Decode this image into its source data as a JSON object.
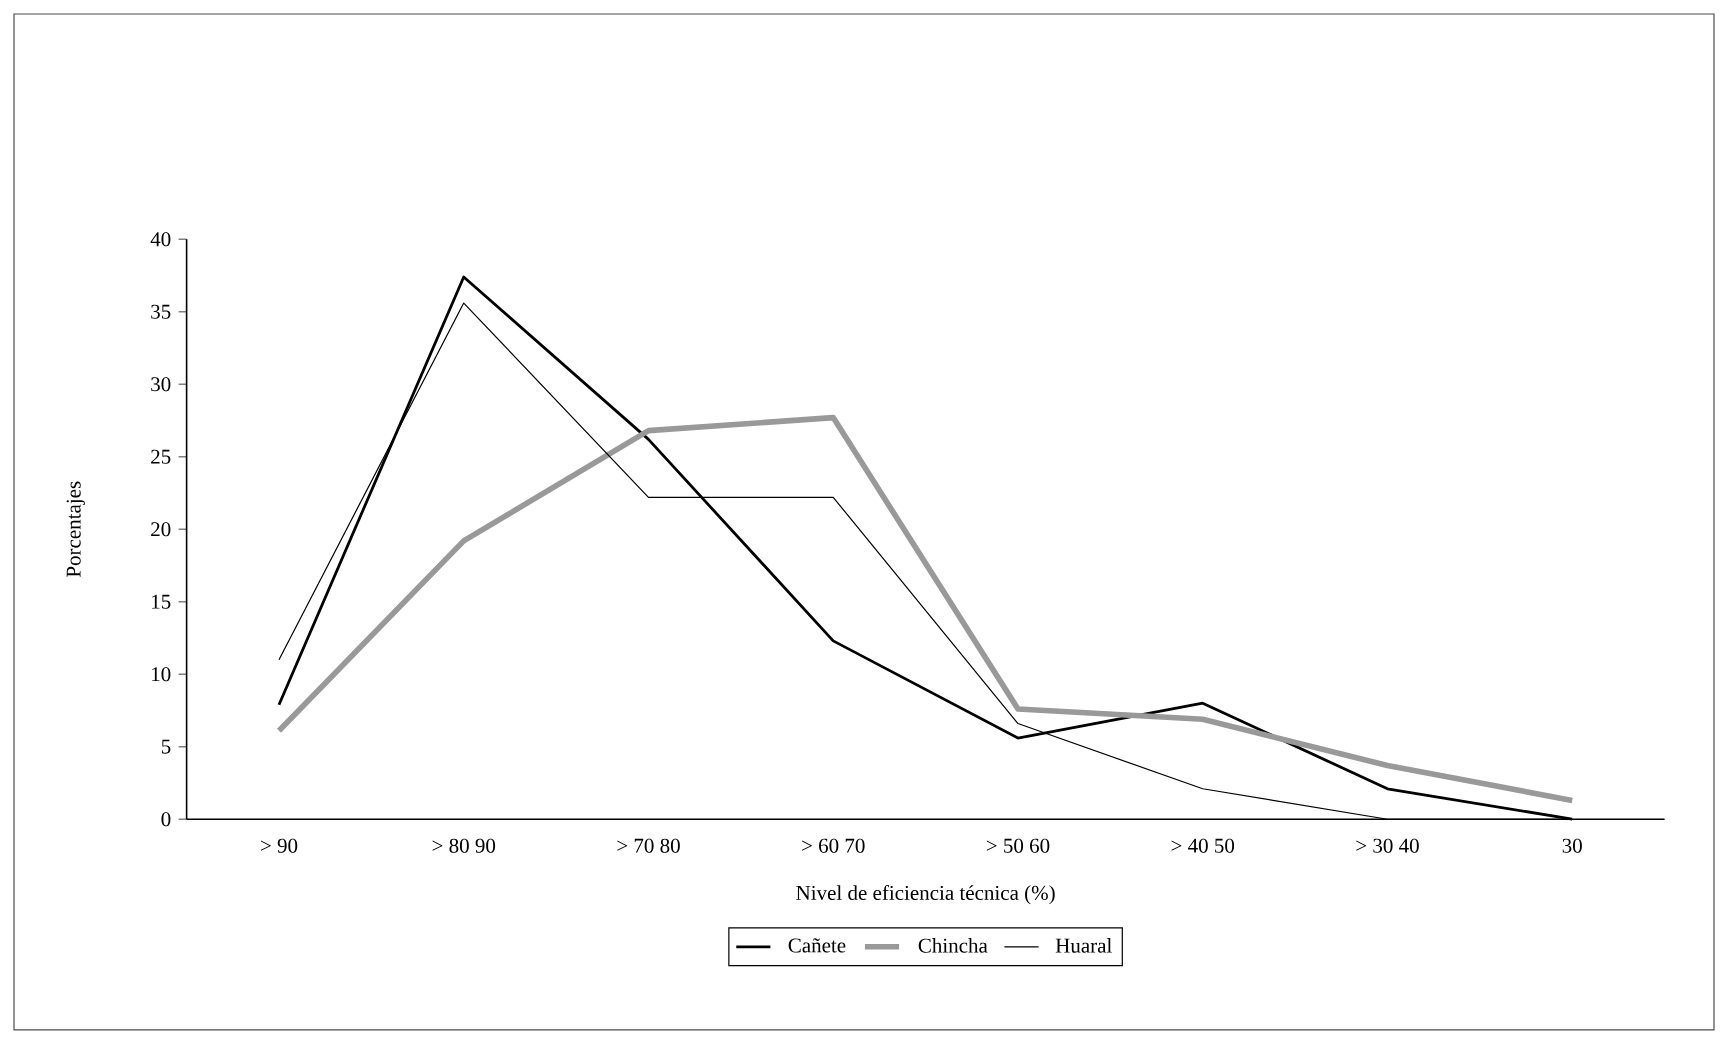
{
  "chart_data": {
    "type": "line",
    "xlabel": "Nivel de eficiencia técnica (%)",
    "ylabel": "Porcentajes",
    "categories": [
      "> 90",
      "> 80   90",
      "> 70      80",
      "> 60   70",
      "> 50   60",
      "> 40   50",
      "> 30   40",
      "30"
    ],
    "series": [
      {
        "name": "Cañete",
        "color": "#000000",
        "values": [
          7.9,
          37.4,
          26.2,
          12.3,
          5.6,
          8.0,
          2.1,
          0
        ]
      },
      {
        "name": "Chincha",
        "color": "#999999",
        "values": [
          6.1,
          19.2,
          26.8,
          27.7,
          7.6,
          6.9,
          3.7,
          1.3
        ]
      },
      {
        "name": "Huaral",
        "color": "#000000",
        "values": [
          11.0,
          35.6,
          22.2,
          22.2,
          6.6,
          2.1,
          0,
          0
        ]
      }
    ],
    "ylim": [
      0,
      40
    ],
    "yticks": [
      0,
      5,
      10,
      15,
      20,
      25,
      30,
      35,
      40
    ],
    "grid": false,
    "legend": "bottom",
    "marker": "none",
    "line_style": "solid"
  }
}
